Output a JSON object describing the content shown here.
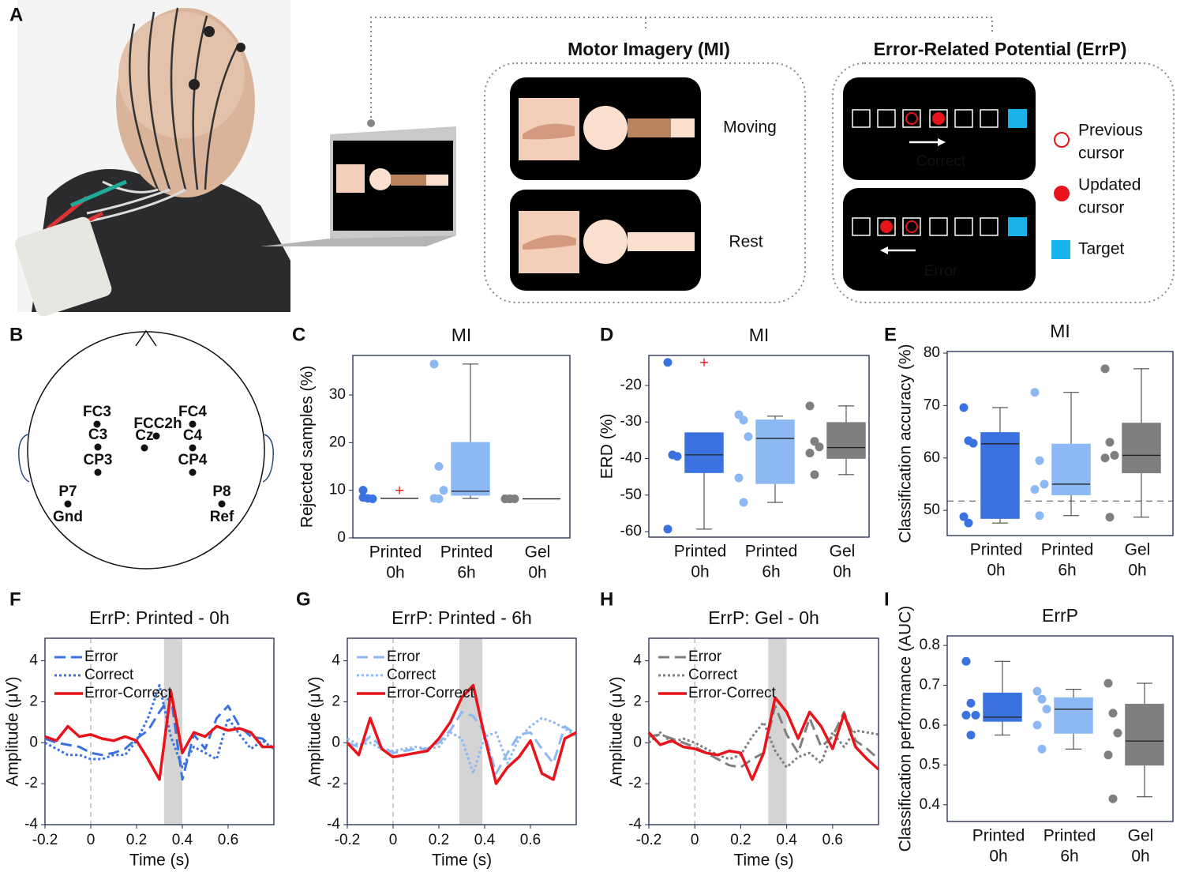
{
  "panel_a": {
    "label": "A",
    "mi_title": "Motor Imagery (MI)",
    "mi_states": [
      "Moving",
      "Rest"
    ],
    "errp_title": "Error-Related Potential (ErrP)",
    "errp_outcomes": [
      "Correct",
      "Error"
    ],
    "legend": [
      [
        "Previous",
        "cursor"
      ],
      [
        "Updated",
        "cursor"
      ],
      [
        "Target"
      ]
    ]
  },
  "panel_b": {
    "label": "B",
    "electrodes": [
      "FC3",
      "C3",
      "CP3",
      "FCC2h",
      "Cz",
      "FC4",
      "C4",
      "CP4",
      "P7",
      "P8"
    ],
    "ground": "Gnd",
    "reference": "Ref"
  },
  "chart_data": [
    {
      "panel": "C",
      "type": "box",
      "title": "MI",
      "ylabel": "Rejected samples (%)",
      "categories": [
        [
          "Printed",
          "0h"
        ],
        [
          "Printed",
          "6h"
        ],
        [
          "Gel",
          "0h"
        ]
      ],
      "ylim": [
        0,
        38.3
      ],
      "yticks": [
        0,
        10,
        20,
        30
      ],
      "groups": [
        {
          "color": "#3a73e0",
          "points": [
            10,
            8.3,
            8.2,
            8.5
          ],
          "q1": 8.3,
          "median": 8.3,
          "q3": 8.3,
          "whisker_low": 8.3,
          "whisker_high": 8.3,
          "outliers": [
            10
          ]
        },
        {
          "color": "#8cb8f3",
          "points": [
            36.5,
            15,
            10,
            8.3,
            8.2
          ],
          "q1": 9,
          "median": 9.8,
          "q3": 20,
          "whisker_low": 8.3,
          "whisker_high": 36.5,
          "outliers": []
        },
        {
          "color": "#7f7f7f",
          "points": [
            8.2,
            8.2,
            8.2,
            8.2,
            8.2
          ],
          "q1": 8.2,
          "median": 8.2,
          "q3": 8.2,
          "whisker_low": 8.2,
          "whisker_high": 8.2,
          "outliers": []
        }
      ]
    },
    {
      "panel": "D",
      "type": "box",
      "title": "MI",
      "ylabel": "ERD (%)",
      "categories": [
        [
          "Printed",
          "0h"
        ],
        [
          "Printed",
          "6h"
        ],
        [
          "Gel",
          "0h"
        ]
      ],
      "ylim": [
        -61.5,
        -11.8
      ],
      "yticks": [
        -60,
        -50,
        -40,
        -30,
        -20
      ],
      "groups": [
        {
          "color": "#3a73e0",
          "points": [
            -13.7,
            -39,
            -39.4,
            -59.3
          ],
          "q1": -43.8,
          "median": -39,
          "q3": -33,
          "whisker_low": -59.3,
          "whisker_high": -33,
          "outliers": [
            -13.7
          ]
        },
        {
          "color": "#8cb8f3",
          "points": [
            -28,
            -29.5,
            -34,
            -45.3,
            -52
          ],
          "q1": -46.8,
          "median": -34.5,
          "q3": -29.5,
          "whisker_low": -52,
          "whisker_high": -28.4,
          "outliers": []
        },
        {
          "color": "#7f7f7f",
          "points": [
            -25.6,
            -35.3,
            -36.8,
            -38.5,
            -44.4
          ],
          "q1": -39.9,
          "median": -37,
          "q3": -30.2,
          "whisker_low": -44.4,
          "whisker_high": -25.6,
          "outliers": []
        }
      ]
    },
    {
      "panel": "E",
      "type": "box",
      "title": "MI",
      "ylabel": "Classification accuracy (%)",
      "categories": [
        [
          "Printed",
          "0h"
        ],
        [
          "Printed",
          "6h"
        ],
        [
          "Gel",
          "0h"
        ]
      ],
      "ylim": [
        45.2,
        80.3
      ],
      "yticks": [
        50,
        60,
        70,
        80
      ],
      "reference_line": 51.8,
      "groups": [
        {
          "color": "#3a73e0",
          "points": [
            69.6,
            63.3,
            62.8,
            48.8,
            47.6
          ],
          "q1": 48.5,
          "median": 62.7,
          "q3": 64.8,
          "whisker_low": 47.6,
          "whisker_high": 69.6,
          "outliers": []
        },
        {
          "color": "#8cb8f3",
          "points": [
            72.5,
            59.5,
            55,
            54,
            49
          ],
          "q1": 53,
          "median": 55,
          "q3": 62.6,
          "whisker_low": 49,
          "whisker_high": 72.5,
          "outliers": []
        },
        {
          "color": "#7f7f7f",
          "points": [
            77,
            63,
            60.5,
            60,
            48.7
          ],
          "q1": 57.2,
          "median": 60.5,
          "q3": 66.6,
          "whisker_low": 48.7,
          "whisker_high": 77,
          "outliers": []
        }
      ]
    },
    {
      "panel": "F",
      "type": "line",
      "title": "ErrP: Printed - 0h",
      "xlabel": "Time (s)",
      "ylabel": "Amplitude (μV)",
      "x": [
        -0.2,
        -0.15,
        -0.1,
        -0.05,
        0,
        0.05,
        0.1,
        0.15,
        0.2,
        0.25,
        0.3,
        0.35,
        0.4,
        0.45,
        0.5,
        0.55,
        0.6,
        0.65,
        0.7,
        0.75,
        0.8
      ],
      "xlim": [
        -0.2,
        0.8
      ],
      "xticks": [
        -0.2,
        0,
        0.2,
        0.4,
        0.6
      ],
      "ylim": [
        -4,
        5.1
      ],
      "yticks": [
        -4,
        -2,
        0,
        2,
        4
      ],
      "vline": 0,
      "shaded": [
        0.32,
        0.4
      ],
      "series": [
        {
          "name": "Error",
          "color": "#3a73e0",
          "dash": "dashed",
          "values": [
            0.2,
            0,
            -0.1,
            -0.2,
            -0.5,
            -0.6,
            -0.5,
            -0.3,
            0.2,
            0.6,
            1.5,
            2.3,
            -1.8,
            0.4,
            -0.3,
            1.2,
            1.8,
            0.8,
            0.3,
            0.2,
            -0.3
          ]
        },
        {
          "name": "Correct",
          "color": "#3a73e0",
          "dash": "dotted",
          "values": [
            0,
            -0.3,
            -0.6,
            -0.6,
            -0.8,
            -0.8,
            -0.6,
            -0.6,
            0.1,
            1.2,
            2.8,
            0.3,
            -1.2,
            -0.2,
            -0.5,
            -0.8,
            1.2,
            0.4,
            -0.3,
            0.1,
            -0.3
          ]
        },
        {
          "name": "Error-Correct",
          "color": "#e8141c",
          "dash": "solid",
          "values": [
            0.3,
            0.1,
            0.8,
            0.3,
            0.4,
            0.2,
            0.1,
            0.3,
            0.1,
            -0.8,
            -1.8,
            2.5,
            -0.5,
            0.5,
            0.3,
            0.8,
            0.6,
            0.7,
            0.5,
            -0.2,
            -0.2
          ]
        }
      ]
    },
    {
      "panel": "G",
      "type": "line",
      "title": "ErrP: Printed - 6h",
      "xlabel": "Time (s)",
      "ylabel": "Amplitude (μV)",
      "x": [
        -0.2,
        -0.15,
        -0.1,
        -0.05,
        0,
        0.05,
        0.1,
        0.15,
        0.2,
        0.25,
        0.3,
        0.35,
        0.4,
        0.45,
        0.5,
        0.55,
        0.6,
        0.65,
        0.7,
        0.75,
        0.8
      ],
      "xlim": [
        -0.2,
        0.8
      ],
      "xticks": [
        -0.2,
        0,
        0.2,
        0.4,
        0.6
      ],
      "ylim": [
        -4,
        5.1
      ],
      "yticks": [
        -4,
        -2,
        0,
        2,
        4
      ],
      "vline": 0,
      "shaded": [
        0.29,
        0.39
      ],
      "series": [
        {
          "name": "Error",
          "color": "#8cb8f3",
          "dash": "dashed",
          "values": [
            0,
            -0.2,
            0.3,
            -0.2,
            -0.5,
            -0.4,
            -0.3,
            -0.3,
            0,
            0.6,
            1.5,
            1.3,
            0.5,
            -1.5,
            -0.5,
            0.4,
            0.5,
            -0.3,
            -1,
            0.8,
            0.4
          ]
        },
        {
          "name": "Correct",
          "color": "#8cb8f3",
          "dash": "dotted",
          "values": [
            0.2,
            -0.1,
            0,
            -0.3,
            -0.4,
            -0.3,
            -0.2,
            -0.3,
            -0.2,
            0.5,
            0.2,
            -1.5,
            0.3,
            0.5,
            -1,
            0.2,
            0.8,
            1.2,
            1,
            0.7,
            0.3
          ]
        },
        {
          "name": "Error-Correct",
          "color": "#e8141c",
          "dash": "solid",
          "values": [
            0,
            -0.6,
            1.2,
            -0.3,
            -0.7,
            -0.6,
            -0.5,
            -0.4,
            0.2,
            1,
            2.2,
            2.8,
            0.3,
            -2,
            -1.2,
            -0.7,
            0.1,
            -1.5,
            -1.8,
            0.2,
            0.5
          ]
        }
      ]
    },
    {
      "panel": "H",
      "type": "line",
      "title": "ErrP: Gel - 0h",
      "xlabel": "Time (s)",
      "ylabel": "Amplitude (μV)",
      "x": [
        -0.2,
        -0.15,
        -0.1,
        -0.05,
        0,
        0.05,
        0.1,
        0.15,
        0.2,
        0.25,
        0.3,
        0.35,
        0.4,
        0.45,
        0.5,
        0.55,
        0.6,
        0.65,
        0.7,
        0.75,
        0.8
      ],
      "xlim": [
        -0.2,
        0.8
      ],
      "xticks": [
        -0.2,
        0,
        0.2,
        0.4,
        0.6
      ],
      "ylim": [
        -4,
        5.1
      ],
      "yticks": [
        -4,
        -2,
        0,
        2,
        4
      ],
      "vline": 0,
      "shaded": [
        0.32,
        0.4
      ],
      "series": [
        {
          "name": "Error",
          "color": "#7f7f7f",
          "dash": "dashed",
          "values": [
            0.3,
            0.4,
            0.2,
            0,
            -0.2,
            -0.5,
            -0.8,
            -1.1,
            -1.2,
            -0.8,
            -0.5,
            1.8,
            0.4,
            -0.5,
            1.2,
            -0.2,
            0.3,
            1.5,
            0.1,
            -0.3,
            -0.8
          ]
        },
        {
          "name": "Correct",
          "color": "#7f7f7f",
          "dash": "dotted",
          "values": [
            0,
            0.5,
            0,
            0.2,
            0,
            -0.3,
            -0.6,
            -0.8,
            -0.6,
            0.3,
            1,
            -0.4,
            -1.2,
            -0.7,
            -0.5,
            -1,
            0.5,
            -0.2,
            0.6,
            0.5,
            0.4
          ]
        },
        {
          "name": "Error-Correct",
          "color": "#e8141c",
          "dash": "solid",
          "values": [
            0.5,
            -0.1,
            0.1,
            -0.2,
            -0.3,
            -0.5,
            -0.6,
            -0.4,
            -0.5,
            -1.8,
            -0.5,
            2.2,
            1.5,
            0.2,
            1.5,
            0.8,
            -0.3,
            1.4,
            -0.2,
            -0.8,
            -1.3
          ]
        }
      ]
    },
    {
      "panel": "I",
      "type": "box",
      "title": "ErrP",
      "ylabel": "Classification performance (AUC)",
      "categories": [
        [
          "Printed",
          "0h"
        ],
        [
          "Printed",
          "6h"
        ],
        [
          "Gel",
          "0h"
        ]
      ],
      "ylim": [
        0.358,
        0.824
      ],
      "yticks": [
        0.4,
        0.5,
        0.6,
        0.7,
        0.8
      ],
      "groups": [
        {
          "color": "#3a73e0",
          "points": [
            0.76,
            0.655,
            0.625,
            0.625,
            0.575
          ],
          "q1": 0.61,
          "median": 0.62,
          "q3": 0.68,
          "whisker_low": 0.575,
          "whisker_high": 0.76,
          "outliers": []
        },
        {
          "color": "#8cb8f3",
          "points": [
            0.685,
            0.665,
            0.64,
            0.6,
            0.54
          ],
          "q1": 0.58,
          "median": 0.64,
          "q3": 0.668,
          "whisker_low": 0.54,
          "whisker_high": 0.69,
          "outliers": []
        },
        {
          "color": "#7f7f7f",
          "points": [
            0.705,
            0.63,
            0.58,
            0.525,
            0.415
          ],
          "q1": 0.5,
          "median": 0.56,
          "q3": 0.652,
          "whisker_low": 0.42,
          "whisker_high": 0.705,
          "outliers": []
        }
      ]
    }
  ]
}
